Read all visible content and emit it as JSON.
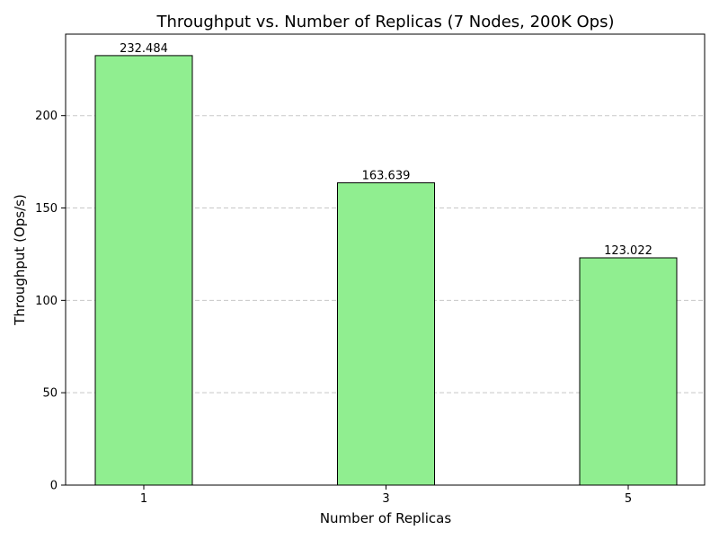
{
  "chart_data": {
    "type": "bar",
    "title": "Throughput vs. Number of Replicas (7 Nodes, 200K Ops)",
    "xlabel": "Number of Replicas",
    "ylabel": "Throughput (Ops/s)",
    "categories": [
      "1",
      "3",
      "5"
    ],
    "values": [
      232.484,
      163.639,
      123.022
    ],
    "data_labels": [
      "232.484",
      "163.639",
      "123.022"
    ],
    "ylim": [
      0,
      244.1
    ],
    "yticks": [
      0,
      50,
      100,
      150,
      200
    ],
    "grid": "horizontal dashed",
    "bar_color": "#90ee90",
    "bar_edge_color": "#000000",
    "grid_color": "#c8c8c8"
  }
}
